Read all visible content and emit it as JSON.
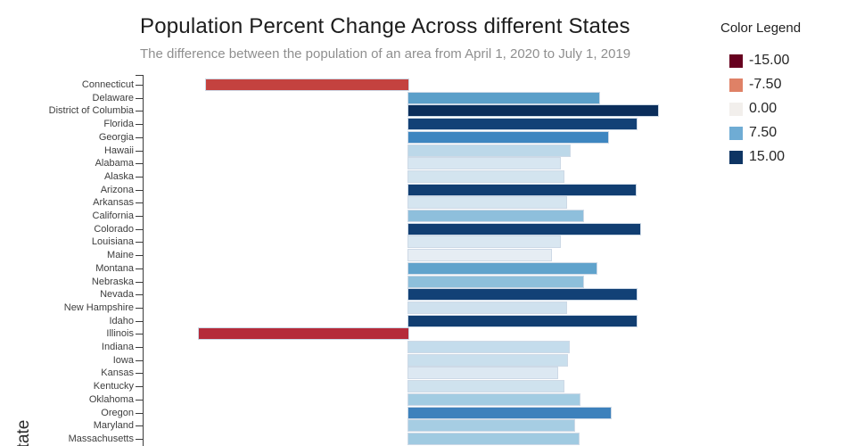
{
  "header": {
    "title": "Population Percent Change Across different States",
    "subtitle": "The difference between the population of an area from April 1, 2020 to July 1, 2019"
  },
  "legend": {
    "title": "Color Legend",
    "items": [
      {
        "label": "-15.00",
        "color": "#67001f"
      },
      {
        "label": "-7.50",
        "color": "#df8166"
      },
      {
        "label": "0.00",
        "color": "#f2efec"
      },
      {
        "label": "7.50",
        "color": "#6facd4"
      },
      {
        "label": "15.00",
        "color": "#0e3563"
      }
    ]
  },
  "chart_data": {
    "type": "bar",
    "orientation": "horizontal",
    "title": "Population Percent Change Across different States",
    "subtitle": "The difference between the population of an area from April 1, 2020 to July 1, 2019",
    "xlabel": "",
    "ylabel": "State",
    "xlim": [
      -19,
      21.7
    ],
    "grid": false,
    "legend_position": "right",
    "categories": [
      "Connecticut",
      "Delaware",
      "District of Columbia",
      "Florida",
      "Georgia",
      "Hawaii",
      "Alabama",
      "Alaska",
      "Arizona",
      "Arkansas",
      "California",
      "Colorado",
      "Louisiana",
      "Maine",
      "Montana",
      "Nebraska",
      "Nevada",
      "New Hampshire",
      "Idaho",
      "Illinois",
      "Indiana",
      "Iowa",
      "Kansas",
      "Kentucky",
      "Oklahoma",
      "Oregon",
      "Maryland",
      "Massachusetts"
    ],
    "values": [
      -14.5,
      13.7,
      17.9,
      16.4,
      14.3,
      11.6,
      10.9,
      11.1,
      16.3,
      11.3,
      12.5,
      16.6,
      10.9,
      10.2,
      13.5,
      12.5,
      16.4,
      11.3,
      16.4,
      -15.0,
      11.5,
      11.4,
      10.7,
      11.1,
      12.3,
      14.5,
      11.9,
      12.2
    ],
    "bar_colors": [
      "#c4423f",
      "#5b9fc9",
      "#0b2e5b",
      "#134176",
      "#3e86c0",
      "#bcd8e9",
      "#d7e6f1",
      "#d3e4ef",
      "#113e72",
      "#d5e5f0",
      "#8ebfdc",
      "#113e72",
      "#d9e7f1",
      "#e6edf3",
      "#60a3cc",
      "#8dbfdb",
      "#124176",
      "#cfe1ee",
      "#113e71",
      "#b52b3a",
      "#c4dcec",
      "#c9dfed",
      "#dce8f2",
      "#cfe2ee",
      "#a2cce2",
      "#3d81bc",
      "#a6cde3",
      "#a0cae1"
    ]
  }
}
